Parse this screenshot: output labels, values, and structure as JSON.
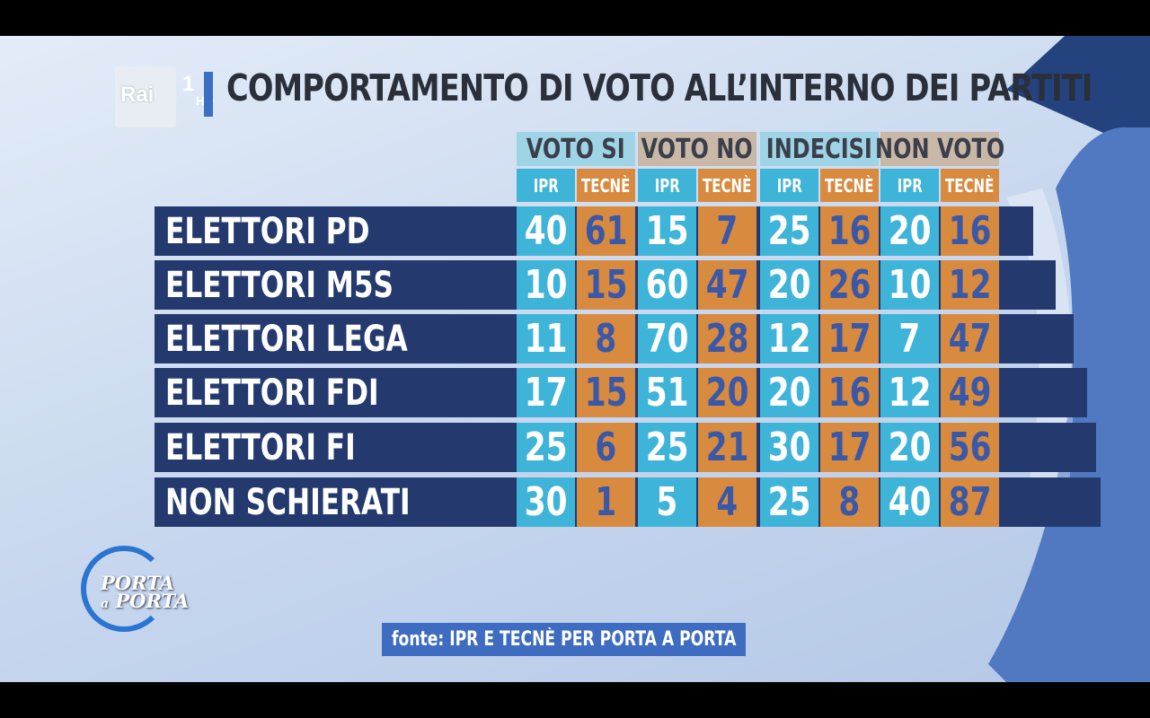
{
  "channel": {
    "brand": "Rai",
    "number": "1",
    "quality": "HD"
  },
  "program": {
    "name": "PORTA a PORTA"
  },
  "chart_data": {
    "type": "table",
    "title": "COMPORTAMENTO DI VOTO ALL’INTERNO DEI PARTITI",
    "groups": [
      "VOTO SI",
      "VOTO NO",
      "INDECISI",
      "NON VOTO"
    ],
    "subcolumns": [
      "IPR",
      "TECNÈ"
    ],
    "rows": [
      {
        "label": "ELETTORI PD",
        "values": [
          40,
          61,
          15,
          7,
          25,
          16,
          20,
          16
        ]
      },
      {
        "label": "ELETTORI M5S",
        "values": [
          10,
          15,
          60,
          47,
          20,
          26,
          10,
          12
        ]
      },
      {
        "label": "ELETTORI LEGA",
        "values": [
          11,
          8,
          70,
          28,
          12,
          17,
          7,
          47
        ]
      },
      {
        "label": "ELETTORI FDI",
        "values": [
          17,
          15,
          51,
          20,
          20,
          16,
          12,
          49
        ]
      },
      {
        "label": "ELETTORI FI",
        "values": [
          25,
          6,
          25,
          21,
          30,
          17,
          20,
          56
        ]
      },
      {
        "label": "NON SCHIERATI",
        "values": [
          30,
          1,
          5,
          4,
          25,
          8,
          40,
          87
        ]
      }
    ],
    "source": "fonte: IPR E TECNÈ PER PORTA A PORTA"
  },
  "colors": {
    "ipr": "#3eb4d8",
    "tecne": "#d88a3e",
    "band": "#243a6e",
    "group_ipr": "#9fd3e6",
    "group_tecne": "#c9b8a8",
    "source_bg": "#3d6cc0"
  }
}
